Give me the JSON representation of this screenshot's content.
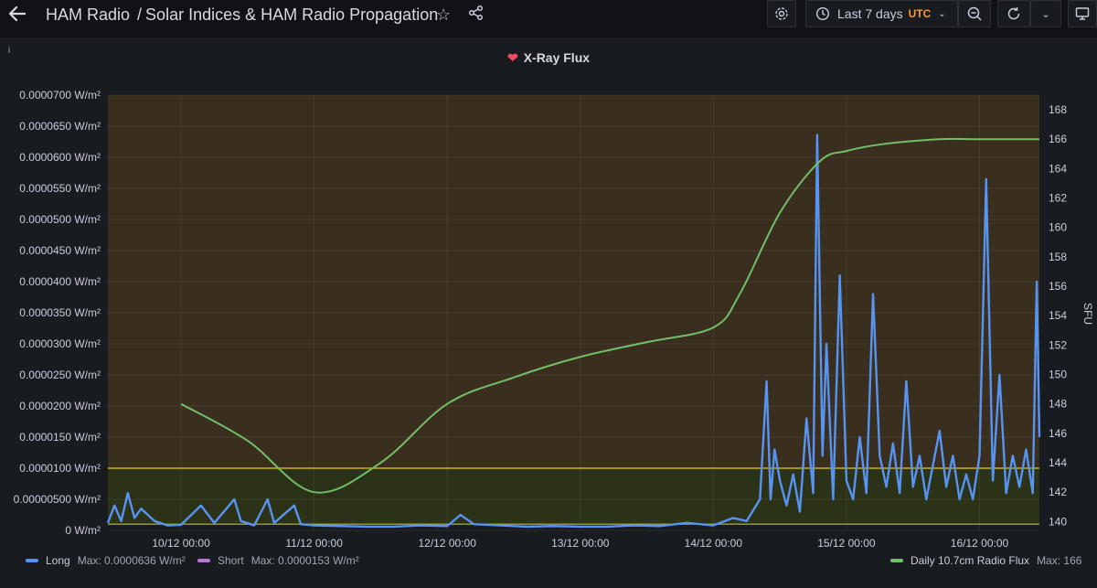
{
  "header": {
    "folder": "HAM Radio",
    "title": "Solar Indices & HAM Radio Propagation",
    "time_range": "Last 7 days",
    "timezone": "UTC"
  },
  "panel": {
    "title": "X-Ray Flux"
  },
  "legend": {
    "long_label": "Long",
    "long_max": "Max: 0.0000636 W/m²",
    "short_label": "Short",
    "short_max": "Max: 0.0000153 W/m²",
    "flux_label": "Daily 10.7cm Radio Flux",
    "flux_max": "Max: 166"
  },
  "colors": {
    "long": "#5794f2",
    "short": "#b877d9",
    "flux": "#73bf69",
    "threshold_high": "#f2cc0c",
    "threshold_fill_high": "#3a2e1e",
    "threshold_fill_mid": "#2b3217"
  },
  "chart_data": {
    "type": "line",
    "x_ticks": [
      "10/12 00:00",
      "11/12 00:00",
      "12/12 00:00",
      "13/12 00:00",
      "14/12 00:00",
      "15/12 00:00",
      "16/12 00:00"
    ],
    "y_left": {
      "ticks": [
        "0 W/m²",
        "0.00000500 W/m²",
        "0.0000100 W/m²",
        "0.0000150 W/m²",
        "0.0000200 W/m²",
        "0.0000250 W/m²",
        "0.0000300 W/m²",
        "0.0000350 W/m²",
        "0.0000400 W/m²",
        "0.0000450 W/m²",
        "0.0000500 W/m²",
        "0.0000550 W/m²",
        "0.0000600 W/m²",
        "0.0000650 W/m²",
        "0.0000700 W/m²"
      ],
      "range": [
        0,
        7e-05
      ]
    },
    "y_right": {
      "label": "SFU",
      "ticks": [
        "140",
        "142",
        "144",
        "146",
        "148",
        "150",
        "152",
        "154",
        "156",
        "158",
        "160",
        "162",
        "164",
        "166",
        "168"
      ],
      "range": [
        139.4,
        169
      ]
    },
    "x_range_days": [
      9.45,
      16.45
    ],
    "thresholds": [
      {
        "value": 1e-05
      },
      {
        "value": 1e-06
      }
    ],
    "series": [
      {
        "name": "Daily 10.7cm Radio Flux",
        "axis": "right",
        "x": [
          10.0,
          10.5,
          11.0,
          11.5,
          12.0,
          12.5,
          13.0,
          13.5,
          14.0,
          14.2,
          14.5,
          14.8,
          15.0,
          15.3,
          15.7,
          16.0,
          16.3,
          16.45
        ],
        "values": [
          148,
          145.5,
          142,
          144,
          148,
          149.8,
          151.2,
          152.2,
          153.2,
          155.5,
          161,
          164.5,
          165.2,
          165.7,
          166,
          166,
          166,
          166
        ]
      },
      {
        "name": "Long",
        "axis": "left",
        "x": [
          9.45,
          9.5,
          9.55,
          9.6,
          9.65,
          9.7,
          9.8,
          9.9,
          10.0,
          10.15,
          10.25,
          10.4,
          10.45,
          10.55,
          10.65,
          10.7,
          10.85,
          10.9,
          11.0,
          11.2,
          11.4,
          11.6,
          11.8,
          12.0,
          12.1,
          12.2,
          12.4,
          12.6,
          12.8,
          13.0,
          13.2,
          13.4,
          13.6,
          13.8,
          14.0,
          14.15,
          14.25,
          14.35,
          14.4,
          14.43,
          14.46,
          14.5,
          14.55,
          14.6,
          14.65,
          14.7,
          14.75,
          14.78,
          14.82,
          14.85,
          14.9,
          14.95,
          15.0,
          15.05,
          15.1,
          15.15,
          15.2,
          15.25,
          15.3,
          15.35,
          15.4,
          15.45,
          15.5,
          15.55,
          15.6,
          15.7,
          15.75,
          15.8,
          15.85,
          15.9,
          15.95,
          16.0,
          16.05,
          16.1,
          16.15,
          16.2,
          16.25,
          16.3,
          16.35,
          16.4,
          16.43,
          16.45
        ],
        "values": [
          1.2e-06,
          4e-06,
          1.5e-06,
          6e-06,
          2e-06,
          3.5e-06,
          1.5e-06,
          8e-07,
          9e-07,
          4e-06,
          1.2e-06,
          5e-06,
          1.5e-06,
          8e-07,
          5e-06,
          1.2e-06,
          4e-06,
          1e-06,
          8e-07,
          7e-07,
          6e-07,
          6e-07,
          8e-07,
          7e-07,
          2.5e-06,
          1e-06,
          8e-07,
          6e-07,
          7e-07,
          6e-07,
          6e-07,
          8e-07,
          7e-07,
          1.2e-06,
          8e-07,
          2e-06,
          1.5e-06,
          5e-06,
          2.4e-05,
          5e-06,
          1.3e-05,
          8e-06,
          4e-06,
          9e-06,
          3e-06,
          1.8e-05,
          6e-06,
          6.36e-05,
          1.2e-05,
          3e-05,
          5e-06,
          4.1e-05,
          8e-06,
          5e-06,
          1.5e-05,
          6e-06,
          3.8e-05,
          1.2e-05,
          7e-06,
          1.4e-05,
          6e-06,
          2.4e-05,
          7e-06,
          1.2e-05,
          5e-06,
          1.6e-05,
          7e-06,
          1.2e-05,
          5e-06,
          9e-06,
          5e-06,
          1.2e-05,
          5.65e-05,
          8e-06,
          2.5e-05,
          6e-06,
          1.2e-05,
          7e-06,
          1.3e-05,
          6e-06,
          4e-05,
          1.5e-05
        ]
      }
    ]
  }
}
